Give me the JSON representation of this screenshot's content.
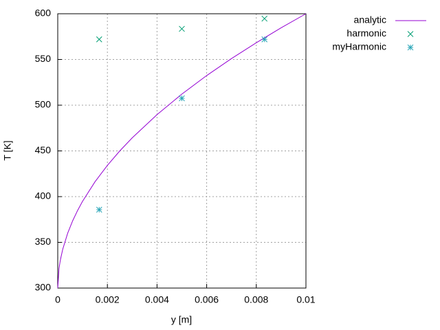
{
  "chart_data": {
    "type": "line",
    "xlabel": "y [m]",
    "ylabel": "T [K]",
    "xlim": [
      0,
      0.01
    ],
    "ylim": [
      300,
      600
    ],
    "xticks": [
      0,
      0.002,
      0.004,
      0.006,
      0.008,
      0.01
    ],
    "yticks": [
      300,
      350,
      400,
      450,
      500,
      550,
      600
    ],
    "grid": true,
    "legend": "outside-top-right",
    "series": [
      {
        "name": "analytic",
        "color": "#9400d3",
        "style": "line",
        "x": [
          0,
          5e-05,
          0.0001,
          0.0002,
          0.0004,
          0.0006,
          0.0008,
          0.001,
          0.0015,
          0.002,
          0.0025,
          0.003,
          0.004,
          0.005,
          0.006,
          0.007,
          0.008,
          0.009,
          0.01
        ],
        "values": [
          300,
          321.2,
          330,
          342.4,
          360,
          373.5,
          384.9,
          394.9,
          416.2,
          434.2,
          450,
          464.3,
          489.7,
          512.1,
          532.4,
          551,
          568.3,
          584.6,
          600
        ]
      },
      {
        "name": "harmonic",
        "color": "#009e73",
        "style": "points",
        "marker": "x",
        "x": [
          0.00167,
          0.005,
          0.00833
        ],
        "values": [
          572,
          583.5,
          594.7
        ]
      },
      {
        "name": "myHarmonic",
        "color": "#2aa6b8",
        "style": "points",
        "marker": "star",
        "x": [
          0.00167,
          0.005,
          0.00833
        ],
        "values": [
          385.7,
          507.5,
          572
        ]
      }
    ]
  }
}
